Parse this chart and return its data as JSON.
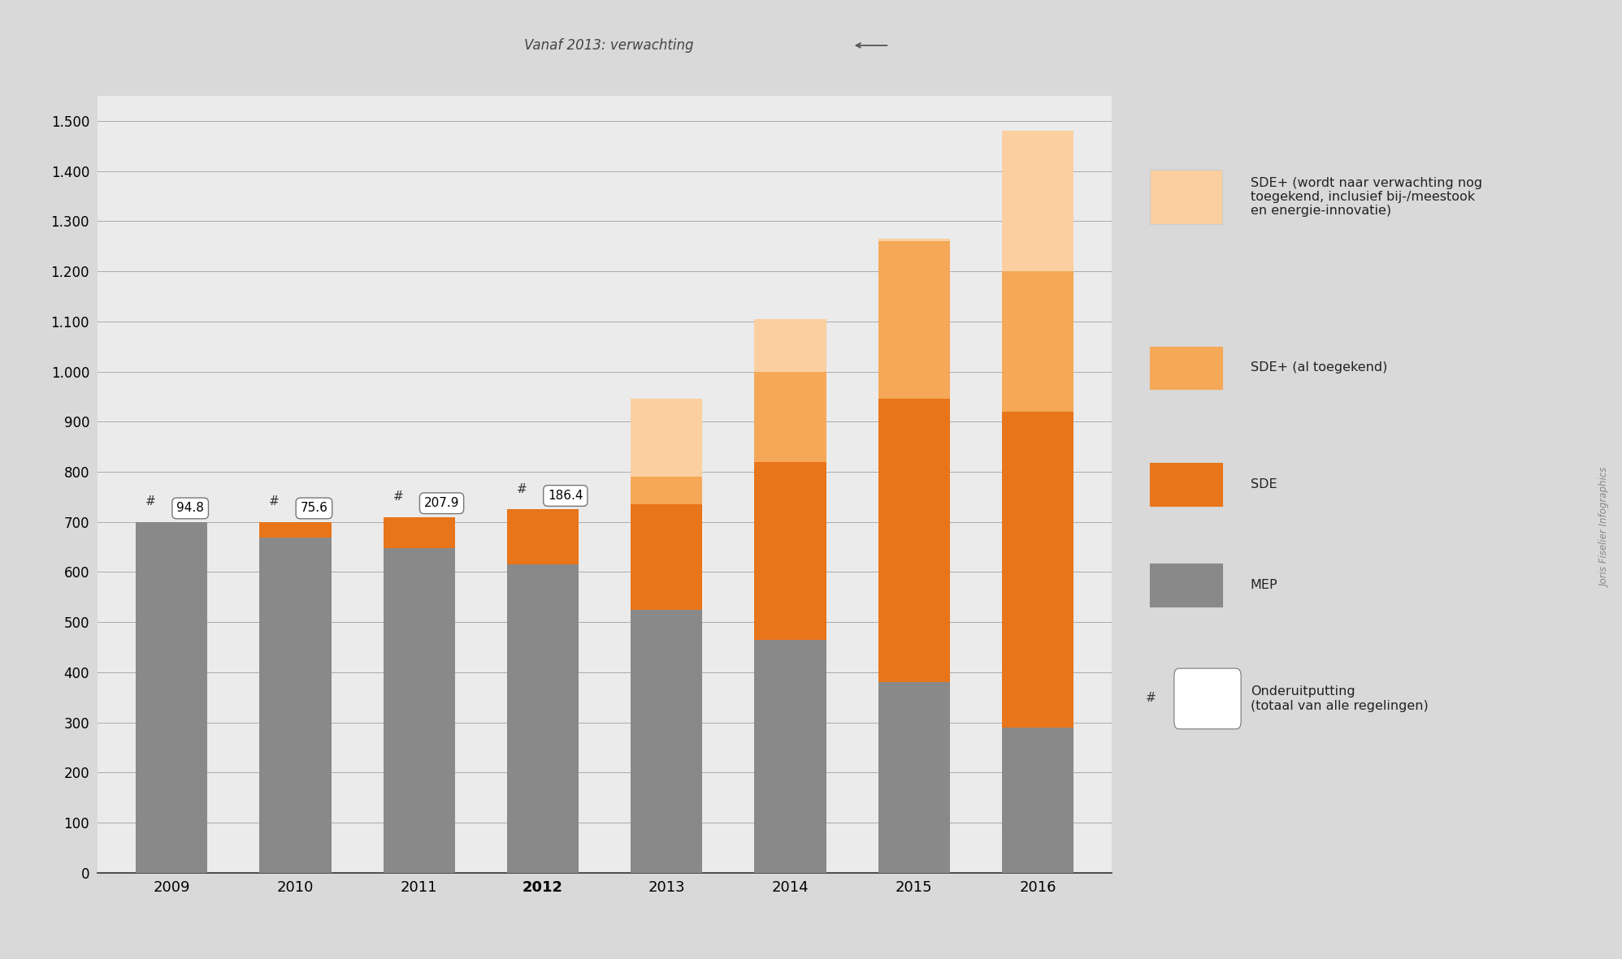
{
  "categories": [
    "2009",
    "2010",
    "2011",
    "2012",
    "2013",
    "2014",
    "2015",
    "2016"
  ],
  "bold_categories": [
    false,
    false,
    false,
    true,
    false,
    false,
    false,
    false
  ],
  "MEP": [
    700,
    668,
    648,
    615,
    525,
    465,
    380,
    290
  ],
  "SDE": [
    0,
    32,
    62,
    110,
    210,
    355,
    565,
    630
  ],
  "SDE_plus_al": [
    0,
    0,
    0,
    0,
    55,
    180,
    315,
    280
  ],
  "SDE_plus_verwacht": [
    0,
    0,
    0,
    0,
    155,
    105,
    5,
    280
  ],
  "onderuitputting": [
    94.8,
    75.6,
    207.9,
    186.4,
    null,
    null,
    null,
    null
  ],
  "ylim": [
    0,
    1550
  ],
  "yticks": [
    0,
    100,
    200,
    300,
    400,
    500,
    600,
    700,
    800,
    900,
    1000,
    1100,
    1200,
    1300,
    1400,
    1500
  ],
  "color_MEP": "#898989",
  "color_SDE": "#E8751A",
  "color_SDE_plus_al": "#F5A857",
  "color_SDE_plus_verwacht": "#FBCFA0",
  "bg_color": "#D9D9D9",
  "plot_bg_color": "#EBEBEB",
  "annotation_arrow_text": "Vanaf 2013: verwachting",
  "legend_label_1": "SDE+ (wordt naar verwachting nog\ntoegekend, inclusief bij-/meestook\nen energie-innovatie)",
  "legend_label_2": "SDE+ (al toegekend)",
  "legend_label_3": "SDE",
  "legend_label_4": "MEP",
  "legend_label_5": "Onderuitputting\n(totaal van alle regelingen)",
  "watermark": "Joris Fiselier Infographics"
}
